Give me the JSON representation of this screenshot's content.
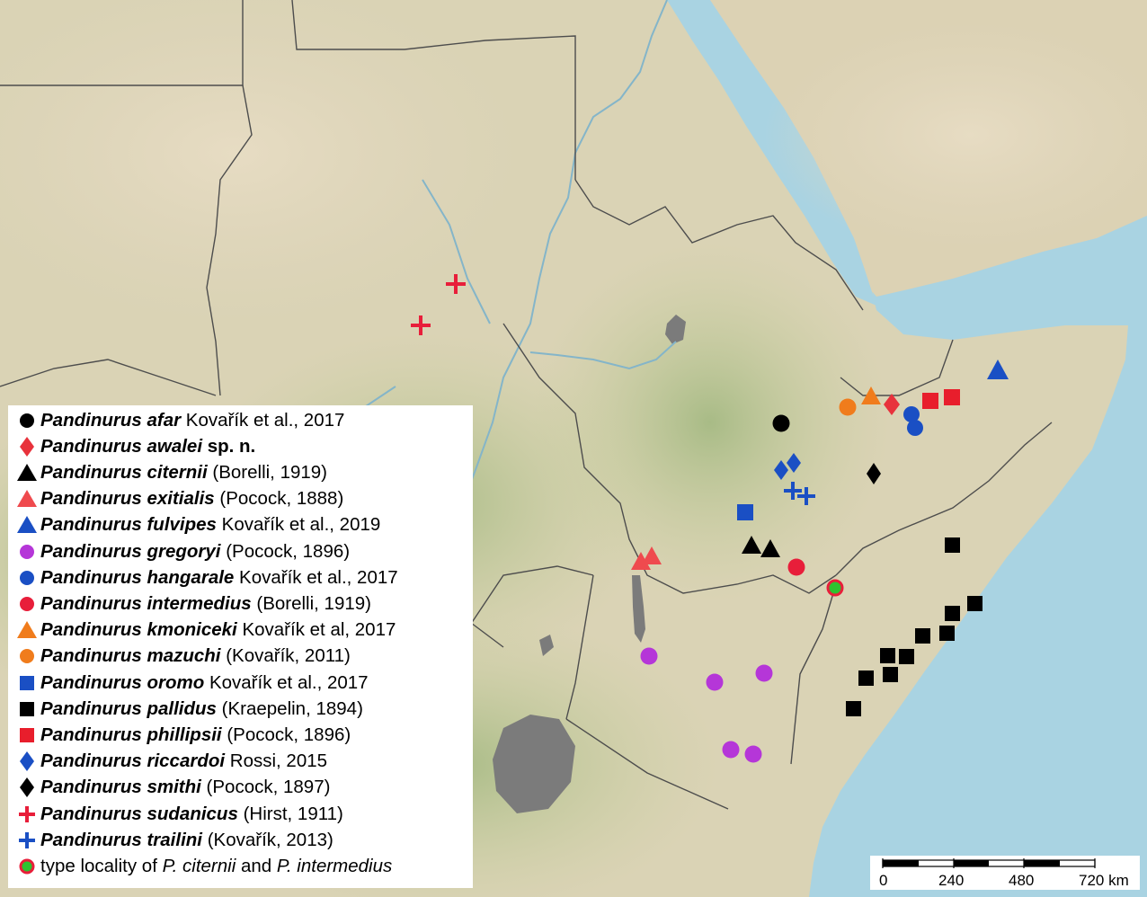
{
  "map": {
    "colors": {
      "sea": "#a9d3e2",
      "land": "#d8cfb0",
      "highland": "#b9c795",
      "lake": "#7a7a7a",
      "border": "#4a4a4a",
      "river": "#7fb3c9"
    }
  },
  "legend": {
    "genus": "Pandinurus",
    "entries": [
      {
        "id": "afar",
        "species": "afar",
        "author": "Kovařík et al., 2017",
        "symbol": "circle",
        "color": "#000000"
      },
      {
        "id": "awalei",
        "species": "awalei",
        "suffix": "sp. n.",
        "author": "",
        "symbol": "diamond",
        "color": "#e8323c"
      },
      {
        "id": "citernii",
        "species": "citernii",
        "author": "(Borelli, 1919)",
        "symbol": "triangle",
        "color": "#000000"
      },
      {
        "id": "exitialis",
        "species": "exitialis",
        "author": "(Pocock, 1888)",
        "symbol": "triangle",
        "color": "#ef4a4e"
      },
      {
        "id": "fulvipes",
        "species": "fulvipes",
        "author": "Kovařík et al., 2019",
        "symbol": "triangle",
        "color": "#1a4fc4"
      },
      {
        "id": "gregoryi",
        "species": "gregoryi",
        "author": "(Pocock, 1896)",
        "symbol": "circle",
        "color": "#b536d8"
      },
      {
        "id": "hangarale",
        "species": "hangarale",
        "author": "Kovařík et al., 2017",
        "symbol": "circle",
        "color": "#1a4fc4"
      },
      {
        "id": "intermedius",
        "species": "intermedius",
        "author": "(Borelli, 1919)",
        "symbol": "circle",
        "color": "#e81e3a"
      },
      {
        "id": "kmoniceki",
        "species": "kmoniceki",
        "author": "Kovařík et al, 2017",
        "symbol": "triangle",
        "color": "#f07c1c"
      },
      {
        "id": "mazuchi",
        "species": "mazuchi",
        "author": "(Kovařík, 2011)",
        "symbol": "circle",
        "color": "#f07c1c"
      },
      {
        "id": "oromo",
        "species": "oromo",
        "author": "Kovařík et al., 2017",
        "symbol": "square",
        "color": "#1a4fc4"
      },
      {
        "id": "pallidus",
        "species": "pallidus",
        "author": "(Kraepelin, 1894)",
        "symbol": "square",
        "color": "#000000"
      },
      {
        "id": "phillipsii",
        "species": "phillipsii",
        "author": "(Pocock, 1896)",
        "symbol": "square",
        "color": "#e81e2c"
      },
      {
        "id": "riccardoi",
        "species": "riccardoi",
        "author": "Rossi, 2015",
        "symbol": "diamond",
        "color": "#1a4fc4"
      },
      {
        "id": "smithi",
        "species": "smithi",
        "author": "(Pocock, 1897)",
        "symbol": "diamond",
        "color": "#000000"
      },
      {
        "id": "sudanicus",
        "species": "sudanicus",
        "author": "(Hirst, 1911)",
        "symbol": "plus",
        "color": "#e81e3a"
      },
      {
        "id": "trailini",
        "species": "trailini",
        "author": "(Kovařík, 2013)",
        "symbol": "plus",
        "color": "#1a4fc4"
      }
    ],
    "type_locality": {
      "prefix": "type locality of ",
      "species_a": "P. citernii",
      "joiner": " and ",
      "species_b": "P. intermedius",
      "fill": "#2ec230",
      "ring": "#e81e3a"
    }
  },
  "scale": {
    "labels": [
      "0",
      "240",
      "480",
      "720 km"
    ]
  }
}
